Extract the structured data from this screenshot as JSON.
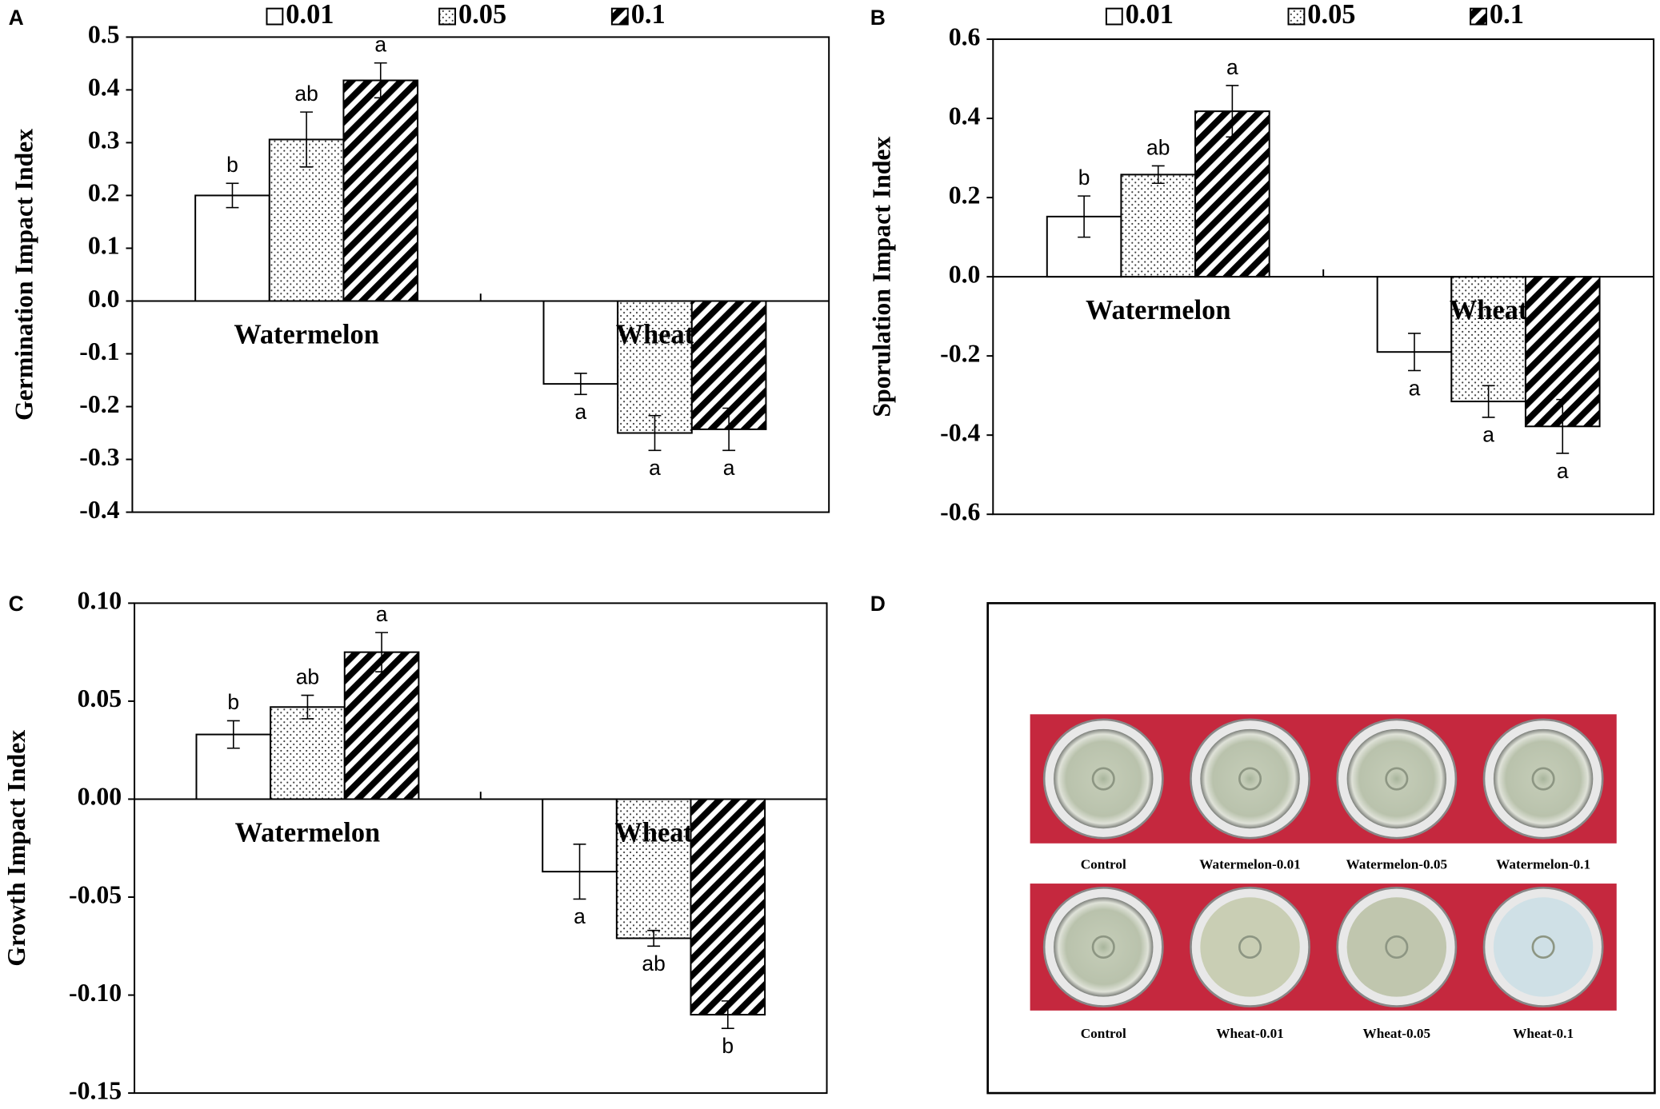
{
  "chart_data": [
    {
      "type": "bar",
      "panel": "A",
      "ylabel": "Germination Impact Index",
      "categories": [
        "Watermelon",
        "Wheat"
      ],
      "legend": true,
      "ylim": [
        -0.4,
        0.5
      ],
      "yticks": [
        -0.4,
        -0.3,
        -0.2,
        -0.1,
        {
          "value": 0,
          "label": "0.0"
        },
        0.1,
        0.2,
        0.3,
        0.4,
        0.5
      ],
      "series": [
        {
          "name": "0.01",
          "color": "#ffffff",
          "pattern": "none",
          "values": [
            0.2,
            -0.157
          ],
          "errors": [
            0.023,
            0.02
          ],
          "labels": [
            "b",
            "a"
          ]
        },
        {
          "name": "0.05",
          "color": "#ffffff",
          "pattern": "dots",
          "values": [
            0.306,
            -0.25
          ],
          "errors": [
            0.052,
            0.033
          ],
          "labels": [
            "ab",
            "a"
          ]
        },
        {
          "name": "0.1",
          "color": "#ffffff",
          "pattern": "hatch",
          "values": [
            0.418,
            -0.243
          ],
          "errors": [
            0.033,
            0.04
          ],
          "labels": [
            "a",
            "a"
          ]
        }
      ]
    },
    {
      "type": "bar",
      "panel": "B",
      "ylabel": "Sporulation Impact Index",
      "categories": [
        "Watermelon",
        "Wheat"
      ],
      "legend": true,
      "ylim": [
        -0.6,
        0.6
      ],
      "yticks": [
        -0.6,
        -0.4,
        -0.2,
        {
          "value": 0,
          "label": "0.0"
        },
        0.2,
        0.4,
        0.6
      ],
      "series": [
        {
          "name": "0.01",
          "color": "#ffffff",
          "pattern": "none",
          "values": [
            0.152,
            -0.19
          ],
          "errors": [
            0.052,
            0.047
          ],
          "labels": [
            "b",
            "a"
          ]
        },
        {
          "name": "0.05",
          "color": "#ffffff",
          "pattern": "dots",
          "values": [
            0.258,
            -0.315
          ],
          "errors": [
            0.022,
            0.04
          ],
          "labels": [
            "ab",
            "a"
          ]
        },
        {
          "name": "0.1",
          "color": "#ffffff",
          "pattern": "hatch",
          "values": [
            0.418,
            -0.378
          ],
          "errors": [
            0.065,
            0.068
          ],
          "labels": [
            "a",
            "a"
          ]
        }
      ]
    },
    {
      "type": "bar",
      "panel": "C",
      "ylabel": "Growth Impact Index",
      "categories": [
        "Watermelon",
        "Wheat"
      ],
      "legend": false,
      "ylim": [
        -0.15,
        0.1
      ],
      "yticks": [
        -0.15,
        {
          "value": -0.1,
          "label": "-0.10"
        },
        -0.05,
        {
          "value": 0,
          "label": "0.00"
        },
        0.05,
        {
          "value": 0.1,
          "label": "0.10"
        }
      ],
      "series": [
        {
          "name": "0.01",
          "color": "#ffffff",
          "pattern": "none",
          "values": [
            0.033,
            -0.037
          ],
          "errors": [
            0.007,
            0.014
          ],
          "labels": [
            "b",
            "a"
          ]
        },
        {
          "name": "0.05",
          "color": "#ffffff",
          "pattern": "dots",
          "values": [
            0.047,
            -0.071
          ],
          "errors": [
            0.006,
            0.004
          ],
          "labels": [
            "ab",
            "ab"
          ]
        },
        {
          "name": "0.1",
          "color": "#ffffff",
          "pattern": "hatch",
          "values": [
            0.075,
            -0.11
          ],
          "errors": [
            0.01,
            0.007
          ],
          "labels": [
            "a",
            "b"
          ]
        }
      ]
    }
  ],
  "photo_panel": {
    "panel": "D",
    "captions": [
      [
        "Control",
        "Watermelon-0.01",
        "Watermelon-0.05",
        "Watermelon-0.1"
      ],
      [
        "Control",
        "Wheat-0.01",
        "Wheat-0.05",
        "Wheat-0.1"
      ]
    ]
  }
}
